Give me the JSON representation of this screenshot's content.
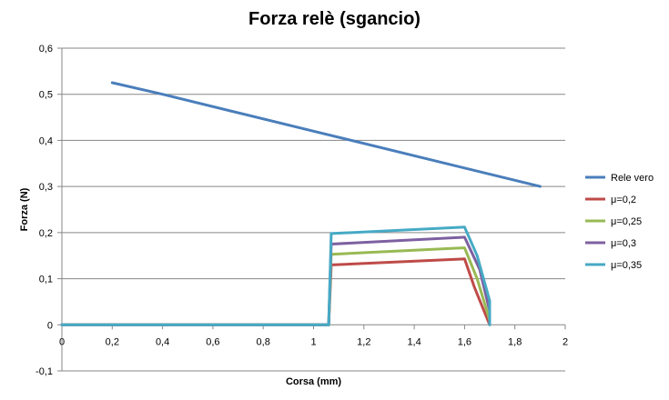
{
  "chart_data": {
    "type": "line",
    "title": "Forza relè (sgancio)",
    "xlabel": "Corsa (mm)",
    "ylabel": "Forza (N)",
    "xlim": [
      0,
      2
    ],
    "ylim": [
      -0.1,
      0.6
    ],
    "x_ticks": [
      0,
      0.2,
      0.4,
      0.6,
      0.8,
      1,
      1.2,
      1.4,
      1.6,
      1.8,
      2
    ],
    "x_tick_labels": [
      "0",
      "0,2",
      "0,4",
      "0,6",
      "0,8",
      "1",
      "1,2",
      "1,4",
      "1,6",
      "1,8",
      "2"
    ],
    "y_ticks": [
      -0.1,
      0,
      0.1,
      0.2,
      0.3,
      0.4,
      0.5,
      0.6
    ],
    "y_tick_labels": [
      "-0,1",
      "0",
      "0,1",
      "0,2",
      "0,3",
      "0,4",
      "0,5",
      "0,6"
    ],
    "grid": "horizontal",
    "legend_position": "right",
    "series": [
      {
        "name": "Rele vero",
        "color": "#4a7ebb",
        "points": [
          [
            0.2,
            0.525
          ],
          [
            0.4,
            0.5
          ],
          [
            1.0,
            0.42
          ],
          [
            1.9,
            0.3
          ]
        ]
      },
      {
        "name": "μ=0,2",
        "color": "#be4b48",
        "points": [
          [
            0,
            0
          ],
          [
            1.06,
            0
          ],
          [
            1.07,
            0.13
          ],
          [
            1.6,
            0.143
          ],
          [
            1.64,
            0.08
          ],
          [
            1.7,
            0.0
          ]
        ]
      },
      {
        "name": "μ=0,25",
        "color": "#98b954",
        "points": [
          [
            0,
            0
          ],
          [
            1.06,
            0
          ],
          [
            1.07,
            0.153
          ],
          [
            1.6,
            0.167
          ],
          [
            1.65,
            0.1
          ],
          [
            1.7,
            0.01
          ]
        ]
      },
      {
        "name": "μ=0,3",
        "color": "#7d60a0",
        "points": [
          [
            0,
            0
          ],
          [
            1.06,
            0
          ],
          [
            1.07,
            0.175
          ],
          [
            1.6,
            0.19
          ],
          [
            1.66,
            0.12
          ],
          [
            1.7,
            0.03
          ]
        ]
      },
      {
        "name": "μ=0,35",
        "color": "#46aac5",
        "points": [
          [
            0,
            0
          ],
          [
            1.06,
            0
          ],
          [
            1.07,
            0.198
          ],
          [
            1.6,
            0.212
          ],
          [
            1.65,
            0.15
          ],
          [
            1.7,
            0.052
          ],
          [
            1.7,
            0.0
          ]
        ]
      }
    ]
  }
}
